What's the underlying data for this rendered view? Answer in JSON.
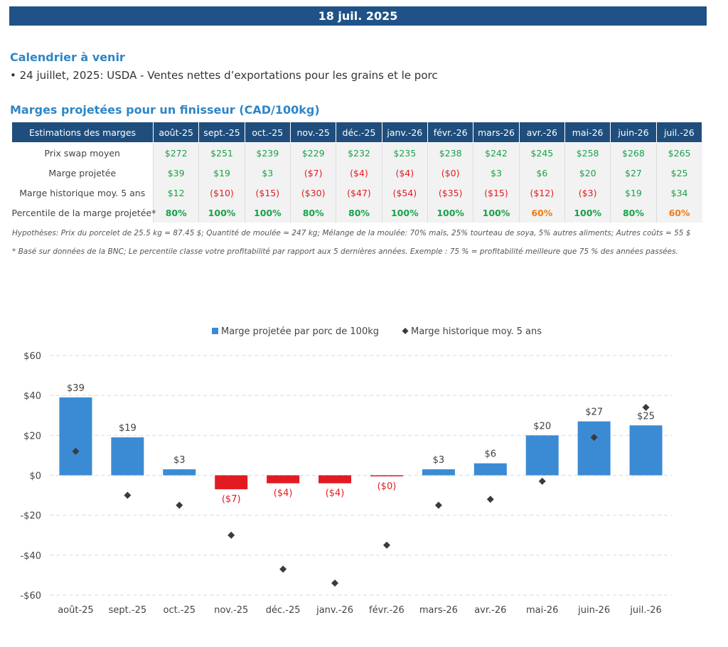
{
  "banner": {
    "date": "18 juil. 2025"
  },
  "calendar": {
    "title": "Calendrier à venir",
    "items": [
      "• 24 juillet, 2025: USDA - Ventes nettes d’exportations pour les grains et le porc"
    ]
  },
  "margins_table": {
    "title": "Marges projetées pour un finisseur (CAD/100kg)",
    "header": [
      "Estimations des marges",
      "août-25",
      "sept.-25",
      "oct.-25",
      "nov.-25",
      "déc.-25",
      "janv.-26",
      "févr.-26",
      "mars-26",
      "avr.-26",
      "mai-26",
      "juin-26",
      "juil.-26"
    ],
    "rows": [
      {
        "label": "Prix swap moyen",
        "values": [
          "$272",
          "$251",
          "$239",
          "$229",
          "$232",
          "$235",
          "$238",
          "$242",
          "$245",
          "$258",
          "$268",
          "$265"
        ]
      },
      {
        "label": "Marge projetée",
        "values": [
          "$39",
          "$19",
          "$3",
          "($7)",
          "($4)",
          "($4)",
          "($0)",
          "$3",
          "$6",
          "$20",
          "$27",
          "$25"
        ]
      },
      {
        "label": "Marge historique moy. 5 ans",
        "values": [
          "$12",
          "($10)",
          "($15)",
          "($30)",
          "($47)",
          "($54)",
          "($35)",
          "($15)",
          "($12)",
          "($3)",
          "$19",
          "$34"
        ]
      },
      {
        "label": "Percentile de la marge projetée*",
        "values": [
          "80%",
          "100%",
          "100%",
          "80%",
          "80%",
          "100%",
          "100%",
          "100%",
          "60%",
          "100%",
          "80%",
          "60%"
        ]
      }
    ],
    "colors": {
      "positive": "#17a34a",
      "negative": "#e21b22",
      "percentile_60": "#f07b16",
      "header_bg": "#1f4e7d"
    }
  },
  "notes": {
    "hypotheses": "Hypothèses: Prix du porcelet de 25.5 kg = 87.45 $; Quantité de moulée = 247 kg; Mélange de la moulée: 70% maïs, 25% tourteau de soya, 5% autres aliments; Autres coûts = 55 $",
    "footnote": "* Basé sur données de la BNC; Le percentile classe votre profitabilité par rapport aux 5 dernières années. Exemple : 75 % = profitabilité meilleure que 75 % des années passées."
  },
  "chart_data": {
    "type": "bar",
    "categories": [
      "août-25",
      "sept.-25",
      "oct.-25",
      "nov.-25",
      "déc.-25",
      "janv.-26",
      "févr.-26",
      "mars-26",
      "avr.-26",
      "mai-26",
      "juin-26",
      "juil.-26"
    ],
    "series": [
      {
        "name": "Marge projetée par porc de 100kg",
        "type": "bar",
        "values": [
          39,
          19,
          3,
          -7,
          -4,
          -4,
          -0.4,
          3,
          6,
          20,
          27,
          25
        ],
        "labels": [
          "$39",
          "$19",
          "$3",
          "($7)",
          "($4)",
          "($4)",
          "($0)",
          "$3",
          "$6",
          "$20",
          "$27",
          "$25"
        ],
        "color_positive": "#3a8bd4",
        "color_negative": "#e21b22"
      },
      {
        "name": "Marge historique moy. 5 ans",
        "type": "scatter",
        "marker": "diamond",
        "values": [
          12,
          -10,
          -15,
          -30,
          -47,
          -54,
          -35,
          -15,
          -12,
          -3,
          19,
          34
        ],
        "color": "#3b3b3b"
      }
    ],
    "yticks": [
      "$60",
      "$40",
      "$20",
      "$0",
      "-$20",
      "-$40",
      "-$60"
    ],
    "ylim": [
      -60,
      60
    ],
    "grid": true,
    "legend": "top-center",
    "xlabel": "",
    "ylabel": ""
  }
}
